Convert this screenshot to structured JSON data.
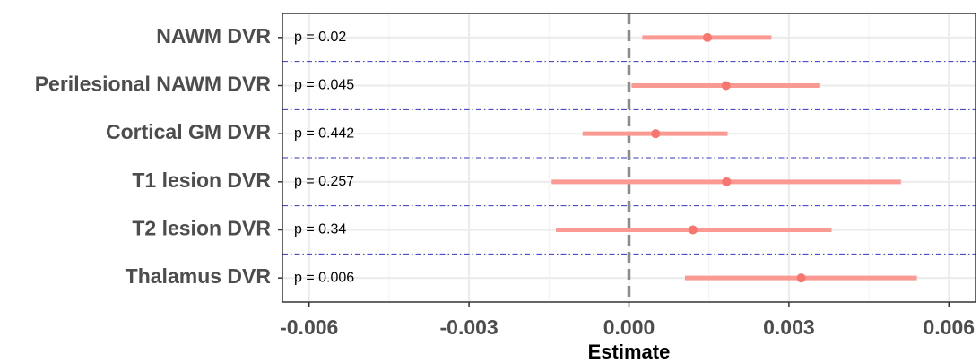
{
  "chart_data": {
    "type": "forest",
    "xlabel": "Estimate",
    "xlim": [
      -0.0065,
      0.0065
    ],
    "x_ticks": [
      -0.006,
      -0.003,
      0.0,
      0.003,
      0.006
    ],
    "x_tick_labels": [
      "-0.006",
      "-0.003",
      "0.000",
      "0.003",
      "0.006"
    ],
    "reference_line": 0.0,
    "grid": true,
    "colors": {
      "estimate": "#f8766d",
      "interval": "#fa9a92",
      "separator": "#3333cc",
      "reference": "#8c8c8c",
      "gridline": "#ebebeb",
      "panel_border": "#333333"
    },
    "rows": [
      {
        "label": "NAWM DVR",
        "p_text": "p = 0.02",
        "estimate": 0.00147,
        "lower": 0.00025,
        "upper": 0.00267
      },
      {
        "label": "Perilesional NAWM DVR",
        "p_text": "p = 0.045",
        "estimate": 0.00182,
        "lower": 5e-05,
        "upper": 0.00357
      },
      {
        "label": "Cortical GM DVR",
        "p_text": "p = 0.442",
        "estimate": 0.0005,
        "lower": -0.00087,
        "upper": 0.00185
      },
      {
        "label": "T1 lesion DVR",
        "p_text": "p = 0.257",
        "estimate": 0.00183,
        "lower": -0.00145,
        "upper": 0.0051
      },
      {
        "label": "T2 lesion DVR",
        "p_text": "p = 0.34",
        "estimate": 0.0012,
        "lower": -0.00137,
        "upper": 0.0038
      },
      {
        "label": "Thalamus DVR",
        "p_text": "p = 0.006",
        "estimate": 0.00323,
        "lower": 0.00105,
        "upper": 0.0054
      }
    ]
  }
}
